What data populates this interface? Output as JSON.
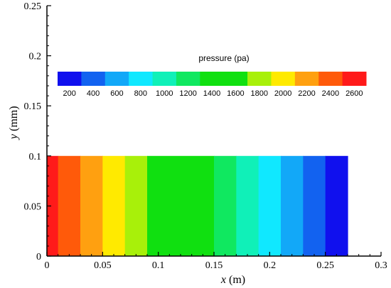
{
  "chart_data": {
    "type": "heatmap",
    "xlabel_var": "x",
    "xlabel_unit": "(m)",
    "ylabel_var": "y",
    "ylabel_unit": "(mm)",
    "xlim": [
      0,
      0.3
    ],
    "ylim": [
      0,
      0.25
    ],
    "x_ticks": [
      "0",
      "0.05",
      "0.1",
      "0.15",
      "0.2",
      "0.25",
      "0.3"
    ],
    "y_ticks": [
      "0",
      "0.05",
      "0.1",
      "0.15",
      "0.2",
      "0.25"
    ],
    "x_tick_values": [
      0,
      0.05,
      0.1,
      0.15,
      0.2,
      0.25,
      0.3
    ],
    "y_tick_values": [
      0,
      0.05,
      0.1,
      0.15,
      0.2,
      0.25
    ],
    "domain": {
      "x": [
        0,
        0.27
      ],
      "y": [
        0,
        0.1
      ]
    },
    "bands": [
      {
        "x0": 0.0,
        "x1": 0.01,
        "color": "#ff1a1a"
      },
      {
        "x0": 0.01,
        "x1": 0.03,
        "color": "#ff5a0a"
      },
      {
        "x0": 0.03,
        "x1": 0.05,
        "color": "#ffa010"
      },
      {
        "x0": 0.05,
        "x1": 0.07,
        "color": "#ffea00"
      },
      {
        "x0": 0.07,
        "x1": 0.09,
        "color": "#a8f00a"
      },
      {
        "x0": 0.09,
        "x1": 0.15,
        "color": "#10e010"
      },
      {
        "x0": 0.15,
        "x1": 0.17,
        "color": "#10e860"
      },
      {
        "x0": 0.17,
        "x1": 0.19,
        "color": "#10f0b8"
      },
      {
        "x0": 0.19,
        "x1": 0.21,
        "color": "#10e8ff"
      },
      {
        "x0": 0.21,
        "x1": 0.23,
        "color": "#12a8f8"
      },
      {
        "x0": 0.23,
        "x1": 0.25,
        "color": "#1262f0"
      },
      {
        "x0": 0.25,
        "x1": 0.27,
        "color": "#1010ee"
      }
    ],
    "legend": {
      "title": "pressure (pa)",
      "labels": [
        "200",
        "400",
        "600",
        "800",
        "1000",
        "1200",
        "1400",
        "1600",
        "1800",
        "2000",
        "2200",
        "2400",
        "2600"
      ],
      "colors": [
        "#1010ee",
        "#1262f0",
        "#12a8f8",
        "#10e8ff",
        "#10f0b8",
        "#10e860",
        "#10e010",
        "#10e010",
        "#a8f00a",
        "#ffea00",
        "#ffa010",
        "#ff5a0a",
        "#ff1a1a"
      ]
    }
  }
}
